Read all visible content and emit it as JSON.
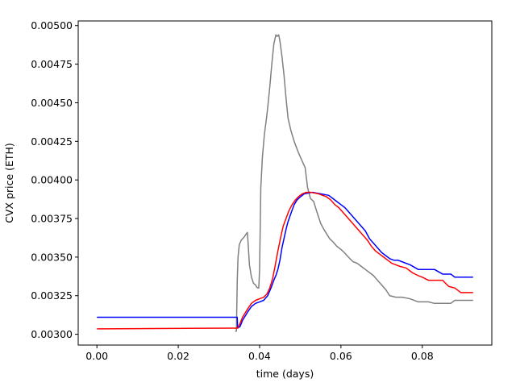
{
  "chart_data": {
    "type": "line",
    "title": "",
    "xlabel": "time (days)",
    "ylabel": "CVX price (ETH)",
    "xlim": [
      -0.0046,
      0.0971
    ],
    "ylim": [
      0.00293,
      0.00503
    ],
    "xticks": [
      0.0,
      0.02,
      0.04,
      0.06,
      0.08
    ],
    "xtick_labels": [
      "0.00",
      "0.02",
      "0.04",
      "0.06",
      "0.08"
    ],
    "yticks": [
      0.003,
      0.00325,
      0.0035,
      0.00375,
      0.004,
      0.00425,
      0.0045,
      0.00475,
      0.005
    ],
    "ytick_labels": [
      "0.00300",
      "0.00325",
      "0.00350",
      "0.00375",
      "0.00400",
      "0.00425",
      "0.00450",
      "0.00475",
      "0.00500"
    ],
    "grid": false,
    "legend": "none",
    "series": [
      {
        "color": "#808080",
        "points": [
          [
            0.034,
            0.00302
          ],
          [
            0.0343,
            0.00302
          ],
          [
            0.0345,
            0.00334
          ],
          [
            0.0347,
            0.0035
          ],
          [
            0.035,
            0.00358
          ],
          [
            0.0355,
            0.00361
          ],
          [
            0.0362,
            0.00363
          ],
          [
            0.0367,
            0.00365
          ],
          [
            0.037,
            0.00366
          ],
          [
            0.0372,
            0.00358
          ],
          [
            0.0375,
            0.00345
          ],
          [
            0.038,
            0.00337
          ],
          [
            0.0385,
            0.00333
          ],
          [
            0.039,
            0.00332
          ],
          [
            0.0393,
            0.003305
          ],
          [
            0.0396,
            0.0033
          ],
          [
            0.0398,
            0.0033
          ],
          [
            0.04,
            0.00342
          ],
          [
            0.0403,
            0.00395
          ],
          [
            0.0407,
            0.00415
          ],
          [
            0.0412,
            0.0043
          ],
          [
            0.0417,
            0.0044
          ],
          [
            0.042,
            0.00447
          ],
          [
            0.0425,
            0.0046
          ],
          [
            0.043,
            0.00475
          ],
          [
            0.0435,
            0.00488
          ],
          [
            0.044,
            0.00494
          ],
          [
            0.0443,
            0.00493
          ],
          [
            0.0447,
            0.00494
          ],
          [
            0.045,
            0.0049
          ],
          [
            0.0455,
            0.0048
          ],
          [
            0.046,
            0.00468
          ],
          [
            0.0465,
            0.00453
          ],
          [
            0.047,
            0.0044
          ],
          [
            0.0477,
            0.00432
          ],
          [
            0.0485,
            0.00425
          ],
          [
            0.0495,
            0.00418
          ],
          [
            0.0505,
            0.00412
          ],
          [
            0.0512,
            0.00408
          ],
          [
            0.0518,
            0.00395
          ],
          [
            0.0525,
            0.00388
          ],
          [
            0.0533,
            0.00386
          ],
          [
            0.054,
            0.0038
          ],
          [
            0.0545,
            0.00376
          ],
          [
            0.055,
            0.00372
          ],
          [
            0.0558,
            0.00368
          ],
          [
            0.0565,
            0.00365
          ],
          [
            0.0572,
            0.00362
          ],
          [
            0.058,
            0.0036
          ],
          [
            0.059,
            0.00357
          ],
          [
            0.06,
            0.00355
          ],
          [
            0.0608,
            0.00353
          ],
          [
            0.0615,
            0.00351
          ],
          [
            0.0622,
            0.00349
          ],
          [
            0.063,
            0.00347
          ],
          [
            0.064,
            0.00346
          ],
          [
            0.065,
            0.00344
          ],
          [
            0.066,
            0.00342
          ],
          [
            0.067,
            0.0034
          ],
          [
            0.068,
            0.00338
          ],
          [
            0.069,
            0.00335
          ],
          [
            0.07,
            0.00332
          ],
          [
            0.071,
            0.00329
          ],
          [
            0.072,
            0.00325
          ],
          [
            0.0735,
            0.00324
          ],
          [
            0.075,
            0.00324
          ],
          [
            0.077,
            0.00323
          ],
          [
            0.079,
            0.00321
          ],
          [
            0.08,
            0.00321
          ],
          [
            0.0815,
            0.00321
          ],
          [
            0.083,
            0.0032
          ],
          [
            0.085,
            0.0032
          ],
          [
            0.087,
            0.0032
          ],
          [
            0.088,
            0.00322
          ],
          [
            0.09,
            0.00322
          ],
          [
            0.0925,
            0.00322
          ]
        ]
      },
      {
        "color": "#0000ff",
        "points": [
          [
            0.0,
            0.00311
          ],
          [
            0.0345,
            0.00311
          ],
          [
            0.0346,
            0.00304
          ],
          [
            0.0352,
            0.00305
          ],
          [
            0.0358,
            0.00309
          ],
          [
            0.0365,
            0.00312
          ],
          [
            0.0372,
            0.00315
          ],
          [
            0.038,
            0.00318
          ],
          [
            0.039,
            0.0032
          ],
          [
            0.04,
            0.00321
          ],
          [
            0.041,
            0.00322
          ],
          [
            0.042,
            0.00325
          ],
          [
            0.0428,
            0.0033
          ],
          [
            0.0435,
            0.00335
          ],
          [
            0.044,
            0.00338
          ],
          [
            0.0445,
            0.00342
          ],
          [
            0.045,
            0.00348
          ],
          [
            0.0455,
            0.00356
          ],
          [
            0.046,
            0.00362
          ],
          [
            0.0465,
            0.00368
          ],
          [
            0.047,
            0.00373
          ],
          [
            0.0478,
            0.00379
          ],
          [
            0.0485,
            0.00384
          ],
          [
            0.0492,
            0.00387
          ],
          [
            0.05,
            0.00389
          ],
          [
            0.051,
            0.00391
          ],
          [
            0.052,
            0.003915
          ],
          [
            0.053,
            0.00392
          ],
          [
            0.054,
            0.003915
          ],
          [
            0.055,
            0.00391
          ],
          [
            0.056,
            0.003905
          ],
          [
            0.057,
            0.0039
          ],
          [
            0.058,
            0.00388
          ],
          [
            0.059,
            0.00386
          ],
          [
            0.06,
            0.00384
          ],
          [
            0.061,
            0.00382
          ],
          [
            0.062,
            0.00379
          ],
          [
            0.063,
            0.00376
          ],
          [
            0.064,
            0.00373
          ],
          [
            0.065,
            0.0037
          ],
          [
            0.066,
            0.00367
          ],
          [
            0.067,
            0.00362
          ],
          [
            0.068,
            0.00359
          ],
          [
            0.069,
            0.00356
          ],
          [
            0.07,
            0.00353
          ],
          [
            0.071,
            0.00351
          ],
          [
            0.072,
            0.00349
          ],
          [
            0.073,
            0.00348
          ],
          [
            0.074,
            0.00348
          ],
          [
            0.075,
            0.00347
          ],
          [
            0.077,
            0.00345
          ],
          [
            0.079,
            0.00342
          ],
          [
            0.08,
            0.00342
          ],
          [
            0.081,
            0.00342
          ],
          [
            0.083,
            0.00342
          ],
          [
            0.085,
            0.00339
          ],
          [
            0.087,
            0.00339
          ],
          [
            0.088,
            0.00337
          ],
          [
            0.09,
            0.00337
          ],
          [
            0.0925,
            0.00337
          ]
        ]
      },
      {
        "color": "#ff0000",
        "points": [
          [
            0.0,
            0.003035
          ],
          [
            0.034,
            0.00304
          ],
          [
            0.0346,
            0.00304
          ],
          [
            0.0352,
            0.00307
          ],
          [
            0.0358,
            0.00311
          ],
          [
            0.0365,
            0.00314
          ],
          [
            0.0372,
            0.00317
          ],
          [
            0.038,
            0.0032
          ],
          [
            0.039,
            0.00322
          ],
          [
            0.04,
            0.00323
          ],
          [
            0.041,
            0.00324
          ],
          [
            0.0418,
            0.00326
          ],
          [
            0.0425,
            0.0033
          ],
          [
            0.0432,
            0.00336
          ],
          [
            0.0438,
            0.00344
          ],
          [
            0.0445,
            0.00354
          ],
          [
            0.0452,
            0.00363
          ],
          [
            0.0458,
            0.0037
          ],
          [
            0.0465,
            0.00375
          ],
          [
            0.0472,
            0.0038
          ],
          [
            0.048,
            0.00384
          ],
          [
            0.0488,
            0.00387
          ],
          [
            0.0495,
            0.00389
          ],
          [
            0.0505,
            0.00391
          ],
          [
            0.0515,
            0.00392
          ],
          [
            0.0525,
            0.00392
          ],
          [
            0.0535,
            0.003915
          ],
          [
            0.0545,
            0.00391
          ],
          [
            0.0555,
            0.0039
          ],
          [
            0.0565,
            0.00389
          ],
          [
            0.0575,
            0.00387
          ],
          [
            0.0585,
            0.00384
          ],
          [
            0.0595,
            0.00382
          ],
          [
            0.0605,
            0.00379
          ],
          [
            0.0615,
            0.00376
          ],
          [
            0.0625,
            0.00373
          ],
          [
            0.0635,
            0.0037
          ],
          [
            0.0645,
            0.00367
          ],
          [
            0.0655,
            0.00364
          ],
          [
            0.0665,
            0.00361
          ],
          [
            0.0675,
            0.00357
          ],
          [
            0.0685,
            0.00354
          ],
          [
            0.0695,
            0.00352
          ],
          [
            0.0705,
            0.0035
          ],
          [
            0.0715,
            0.00348
          ],
          [
            0.0725,
            0.00346
          ],
          [
            0.0735,
            0.00345
          ],
          [
            0.0745,
            0.00344
          ],
          [
            0.076,
            0.00343
          ],
          [
            0.0775,
            0.0034
          ],
          [
            0.079,
            0.00338
          ],
          [
            0.08,
            0.00337
          ],
          [
            0.0815,
            0.00335
          ],
          [
            0.083,
            0.00335
          ],
          [
            0.085,
            0.00335
          ],
          [
            0.0865,
            0.00331
          ],
          [
            0.088,
            0.0033
          ],
          [
            0.0895,
            0.00327
          ],
          [
            0.0925,
            0.00327
          ]
        ]
      }
    ]
  }
}
